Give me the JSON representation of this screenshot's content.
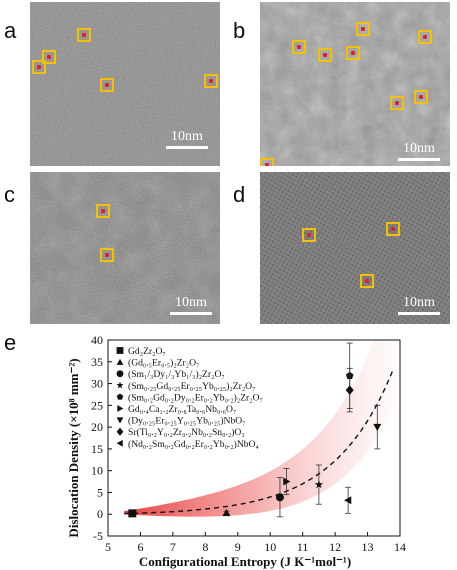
{
  "panels": [
    {
      "label": "a",
      "scalebar": "10nm"
    },
    {
      "label": "b",
      "scalebar": "10nm"
    },
    {
      "label": "c",
      "scalebar": "10nm"
    },
    {
      "label": "d",
      "scalebar": "10nm"
    }
  ],
  "chart_label": "e",
  "chart_data": {
    "type": "scatter",
    "xlabel": "Configurational Entropy (J  K⁻¹mol⁻¹)",
    "ylabel": "Dislocation Density (×10⁸ mm⁻²)",
    "xlim": [
      5,
      14
    ],
    "ylim": [
      -5,
      40
    ],
    "xticks": [
      5,
      6,
      7,
      8,
      9,
      10,
      11,
      12,
      13,
      14
    ],
    "yticks": [
      -5,
      0,
      5,
      10,
      15,
      20,
      25,
      30,
      35,
      40
    ],
    "fit": "dashed exponential trend with shaded band",
    "series": [
      {
        "name": "Gd₂Zr₂O₇",
        "marker": "square",
        "x": 5.75,
        "y": 0.2,
        "err": 0.3
      },
      {
        "name": "(Gd₀.₅Er₀.₅)₂Zr₂O₇",
        "marker": "triangle-up",
        "x": 8.65,
        "y": 0.3,
        "err": 0.4
      },
      {
        "name": "(Sm₁/₃Dy₁/₃Yb₁/₃)₂Zr₂O₇",
        "marker": "circle",
        "x": 10.3,
        "y": 3.9,
        "err": 4.5
      },
      {
        "name": "(Sm₀.₂₅Gd₀.₂₅Er₀.₂₅Yb₀.₂₅)₂Zr₂O₇",
        "marker": "star",
        "x": 11.5,
        "y": 6.8,
        "err": 4.5
      },
      {
        "name": "(Sm₀.₂Gd₀.₂Dy₀.₂Er₀.₂Yb₀.₂)₂Zr₂O₇",
        "marker": "pentagon",
        "x": 12.45,
        "y": 31.8,
        "err": 7.5
      },
      {
        "name": "Gd₀.₄Ca₁.₂Zr₀.₈Ta₀.₆Nb₀.₆O₇",
        "marker": "triangle-right",
        "x": 10.5,
        "y": 7.5,
        "err": 3.0
      },
      {
        "name": "(Dy₀.₂₅Er₀.₂₅Y₀.₂₅Yb₀.₂₅)NbO₇",
        "marker": "triangle-down",
        "x": 13.3,
        "y": 20.0,
        "err": 5.0
      },
      {
        "name": "Sr(Ti₀.₂Y₀.₂Zr₀.₂Nb₀.₂Sn₀.₂)O₃",
        "marker": "diamond",
        "x": 12.45,
        "y": 28.5,
        "err": 5.0
      },
      {
        "name": "(Nd₀.₂Sm₀.₂Gd₀.₂Er₀.₂Yb₀.₂)NbO₄",
        "marker": "triangle-left",
        "x": 12.4,
        "y": 3.2,
        "err": 3.0
      }
    ]
  },
  "colors": {
    "marker_box": "#f2c200",
    "marker_dot": "#e0202a",
    "band": "#e33a3a",
    "scalebar": "#ffffff"
  }
}
